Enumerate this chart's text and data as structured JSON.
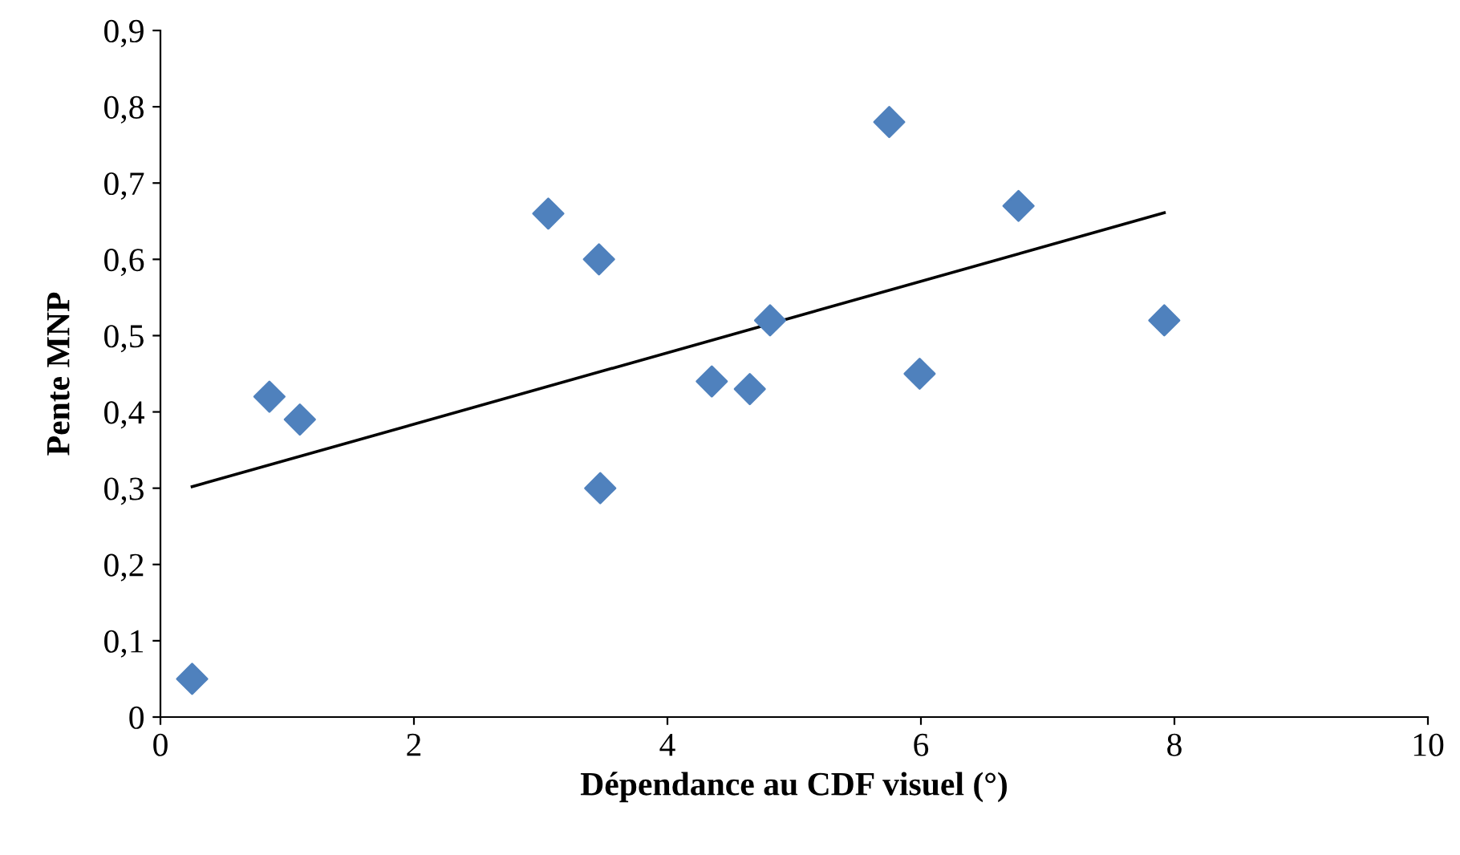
{
  "chart_data": {
    "type": "scatter",
    "xlabel": "Dépendance au CDF visuel (°)",
    "ylabel": "Pente MNP",
    "series": [
      {
        "color": "#4f81bd",
        "marker": "diamond",
        "x": [
          0.25,
          0.86,
          1.1,
          3.06,
          3.46,
          3.47,
          4.35,
          4.65,
          4.81,
          5.75,
          5.99,
          6.77,
          7.92
        ],
        "values": [
          0.05,
          0.42,
          0.39,
          0.66,
          0.6,
          0.3,
          0.44,
          0.43,
          0.52,
          0.78,
          0.45,
          0.67,
          0.52
        ]
      },
      {
        "type": "line",
        "color": "#000000",
        "marker": "none",
        "x": [
          0.25,
          7.92
        ],
        "values": [
          0.302,
          0.661
        ]
      }
    ],
    "xlim": [
      0,
      10
    ],
    "xticks": [
      0,
      2,
      4,
      6,
      8,
      10
    ],
    "ylim": [
      0,
      0.9
    ],
    "yticks": [
      {
        "value": 0,
        "label": "0"
      },
      {
        "value": 0.1,
        "label": "0,1"
      },
      {
        "value": 0.2,
        "label": "0,2"
      },
      {
        "value": 0.3,
        "label": "0,3"
      },
      {
        "value": 0.4,
        "label": "0,4"
      },
      {
        "value": 0.5,
        "label": "0,5"
      },
      {
        "value": 0.6,
        "label": "0,6"
      },
      {
        "value": 0.7,
        "label": "0,7"
      },
      {
        "value": 0.8,
        "label": "0,8"
      },
      {
        "value": 0.9,
        "label": "0,9"
      }
    ],
    "grid": false,
    "legend": false
  }
}
